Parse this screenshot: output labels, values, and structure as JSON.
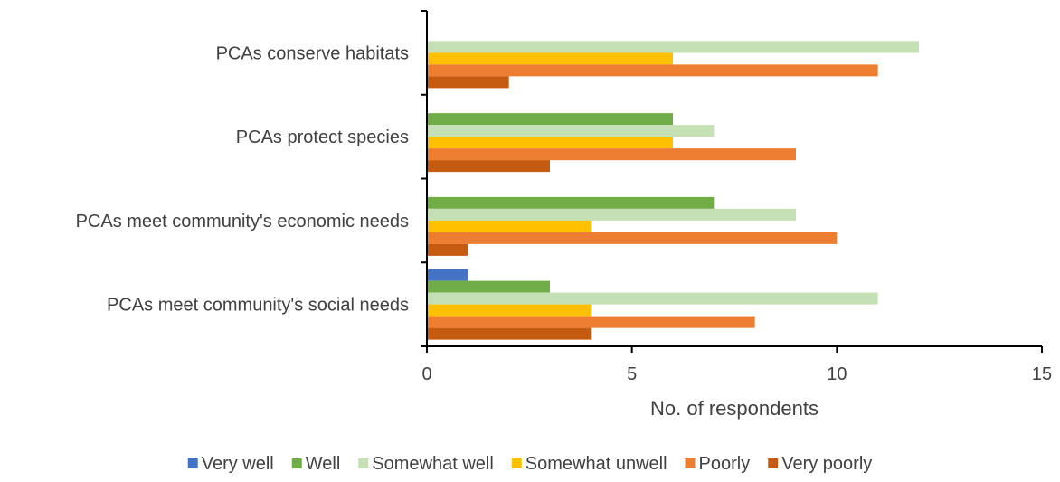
{
  "chart_data": {
    "type": "bar",
    "orientation": "horizontal",
    "categories": [
      "PCAs conserve habitats",
      "PCAs protect species",
      "PCAs meet community's economic needs",
      "PCAs meet community's social needs"
    ],
    "series": [
      {
        "name": "Very well",
        "color": "#4472C4",
        "values": [
          0,
          0,
          0,
          1
        ]
      },
      {
        "name": "Well",
        "color": "#70AD47",
        "values": [
          0,
          6,
          7,
          3
        ]
      },
      {
        "name": "Somewhat well",
        "color": "#C5E0B4",
        "values": [
          12,
          7,
          9,
          11
        ]
      },
      {
        "name": "Somewhat unwell",
        "color": "#FFC000",
        "values": [
          6,
          6,
          4,
          4
        ]
      },
      {
        "name": "Poorly",
        "color": "#ED7D31",
        "values": [
          11,
          9,
          10,
          8
        ]
      },
      {
        "name": "Very poorly",
        "color": "#C55A11",
        "values": [
          2,
          3,
          1,
          4
        ]
      }
    ],
    "xlabel": "No. of respondents",
    "ylabel": "",
    "xlim": [
      0,
      15
    ],
    "xticks": [
      "0",
      "5",
      "10",
      "15"
    ],
    "grid": false,
    "legend_position": "bottom"
  }
}
